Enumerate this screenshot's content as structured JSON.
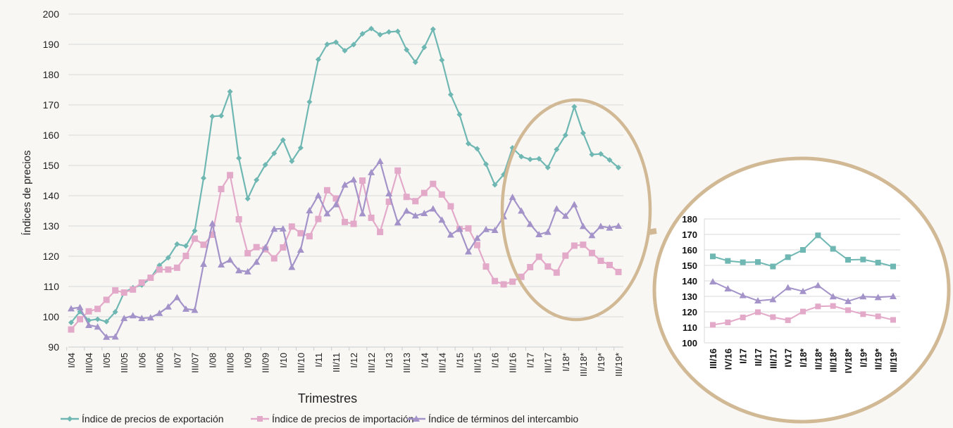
{
  "chart_data": [
    {
      "type": "line",
      "title": "",
      "xlabel": "Trimestres",
      "ylabel": "Índices de precios",
      "ylim": [
        90,
        200
      ],
      "yticks": [
        90,
        100,
        110,
        120,
        130,
        140,
        150,
        160,
        170,
        180,
        190,
        200
      ],
      "grid": true,
      "legend_position": "bottom",
      "x": [
        "I/04",
        "II/04",
        "III/04",
        "IV/04",
        "I/05",
        "II/05",
        "III/05",
        "IV/05",
        "I/06",
        "II/06",
        "III/06",
        "IV/06",
        "I/07",
        "II/07",
        "III/07",
        "IV/07",
        "I/08",
        "II/08",
        "III/08",
        "IV/08",
        "I/09",
        "II/09",
        "III/09",
        "IV/09",
        "I/10",
        "II/10",
        "III/10",
        "IV/10",
        "I/11",
        "II/11",
        "III/11",
        "IV/11",
        "I/12",
        "II/12",
        "III/12",
        "IV/12",
        "I/13",
        "II/13",
        "III/13",
        "IV/13",
        "I/14",
        "II/14",
        "III/14",
        "IV/14",
        "I/15",
        "II/15",
        "III/15",
        "IV/15",
        "I/16",
        "II/16",
        "III/16",
        "IV/16",
        "I/17",
        "II/17",
        "III/17",
        "IV/17",
        "I/18*",
        "II/18*",
        "III/18*",
        "IV/18*",
        "I/19*",
        "II/19*",
        "III/19*"
      ],
      "xtick_labels": [
        "I/04",
        "III/04",
        "I/05",
        "III/05",
        "I/06",
        "III/06",
        "I/07",
        "III/07",
        "I/08",
        "III/08",
        "I/09",
        "III/09",
        "I/10",
        "III/10",
        "I/11",
        "III/11",
        "I/12",
        "III/12",
        "I/13",
        "III/13",
        "I/14",
        "III/14",
        "I/15",
        "III/15",
        "I/16",
        "III/16",
        "I/17",
        "III/17",
        "I/18*",
        "III/18*",
        "I/19*",
        "III/19*"
      ],
      "series": [
        {
          "name": "Índice de precios de exportación",
          "color": "#6fb7b2",
          "marker": "diamond",
          "values": [
            98.1,
            101.7,
            98.8,
            99.2,
            98.4,
            101.6,
            108.0,
            109.6,
            110.5,
            112.8,
            117.0,
            119.5,
            124.0,
            123.4,
            128.4,
            145.8,
            166.2,
            166.4,
            174.4,
            152.4,
            139.0,
            145.2,
            150.2,
            154.0,
            158.4,
            151.4,
            155.8,
            171.0,
            185.0,
            190.0,
            190.7,
            187.9,
            189.9,
            193.5,
            195.2,
            193.2,
            194.1,
            194.3,
            188.2,
            184.1,
            189.0,
            195.0,
            184.8,
            173.4,
            166.8,
            157.2,
            155.5,
            150.4,
            143.6,
            147.0,
            155.8,
            152.9,
            152.0,
            152.2,
            149.3,
            155.3,
            160.0,
            169.4,
            160.7,
            153.6,
            153.8,
            151.8,
            149.3
          ]
        },
        {
          "name": "Índice de precios de importación",
          "color": "#e3a9c9",
          "marker": "square",
          "values": [
            95.8,
            99.2,
            101.8,
            102.6,
            105.6,
            108.7,
            108.0,
            109.0,
            111.3,
            112.9,
            115.6,
            115.6,
            116.2,
            120.1,
            125.8,
            123.8,
            127.1,
            142.2,
            146.8,
            132.2,
            121.0,
            123.0,
            122.3,
            119.3,
            122.9,
            129.8,
            127.6,
            126.6,
            132.3,
            141.8,
            139.1,
            131.3,
            130.7,
            145.0,
            132.7,
            128.0,
            138.0,
            148.3,
            139.6,
            138.2,
            140.9,
            143.9,
            140.4,
            136.5,
            129.0,
            129.2,
            123.7,
            116.6,
            111.8,
            110.7,
            111.6,
            113.2,
            116.4,
            119.8,
            116.6,
            114.6,
            120.2,
            123.5,
            123.8,
            121.1,
            118.5,
            117.1,
            114.8
          ]
        },
        {
          "name": "Índice de términos del intercambio",
          "color": "#a393c9",
          "marker": "triangle",
          "values": [
            102.7,
            103.1,
            97.2,
            96.7,
            93.3,
            93.4,
            99.5,
            100.4,
            99.5,
            99.7,
            101.2,
            103.3,
            106.4,
            102.6,
            102.2,
            117.4,
            130.8,
            117.2,
            118.8,
            115.3,
            114.9,
            118.1,
            122.9,
            129.0,
            129.1,
            116.4,
            122.1,
            135.1,
            140.1,
            134.1,
            137.1,
            143.6,
            145.3,
            134.1,
            147.7,
            151.4,
            140.7,
            131.1,
            135.0,
            133.4,
            134.2,
            135.7,
            132.0,
            127.1,
            129.0,
            121.5,
            126.0,
            128.9,
            128.6,
            133.1,
            139.5,
            135.0,
            130.6,
            127.2,
            128.0,
            135.7,
            133.3,
            137.1,
            129.9,
            126.9,
            129.9,
            129.4,
            130.0
          ]
        }
      ]
    },
    {
      "type": "line",
      "title": "",
      "description": "Zoomed inset of the last 13 quarters",
      "ylim": [
        100,
        180
      ],
      "yticks": [
        100,
        110,
        120,
        130,
        140,
        150,
        160,
        170,
        180
      ],
      "grid": true,
      "x": [
        "III/16",
        "IV/16",
        "I/17",
        "II/17",
        "III/17",
        "IV17",
        "I/18*",
        "II/18*",
        "III/18*",
        "IV/18*",
        "I/19*",
        "II/19*",
        "III/19*"
      ],
      "series": [
        {
          "name": "Índice de precios de exportación",
          "color": "#6fb7b2",
          "marker": "square",
          "values": [
            155.8,
            152.9,
            152.0,
            152.2,
            149.3,
            155.3,
            160.0,
            169.4,
            160.7,
            153.6,
            153.8,
            151.8,
            149.3
          ]
        },
        {
          "name": "Índice de precios de importación",
          "color": "#e3a9c9",
          "marker": "square",
          "values": [
            111.6,
            113.2,
            116.4,
            119.8,
            116.6,
            114.6,
            120.2,
            123.5,
            123.8,
            121.1,
            118.5,
            117.1,
            114.8
          ]
        },
        {
          "name": "Índice de términos del intercambio",
          "color": "#a393c9",
          "marker": "triangle",
          "values": [
            139.5,
            135.0,
            130.6,
            127.2,
            128.0,
            135.7,
            133.3,
            137.1,
            129.9,
            126.9,
            129.9,
            129.4,
            130.0
          ]
        }
      ]
    }
  ],
  "colors": {
    "highlight_ring": "#d2b995",
    "background": "#f8f7f4",
    "grid": "#d9d9d9"
  }
}
